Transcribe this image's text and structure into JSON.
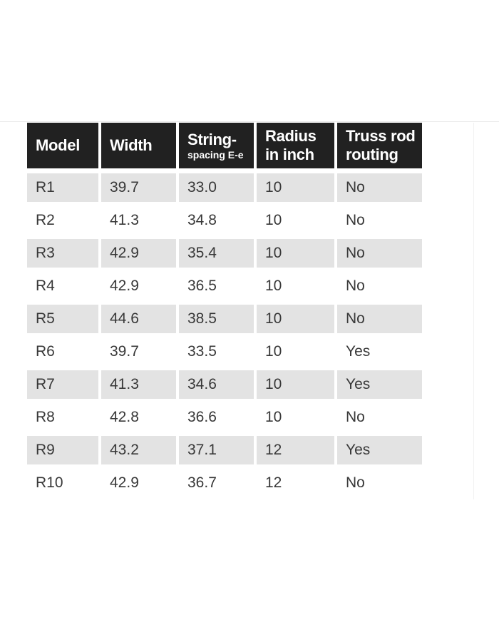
{
  "colors": {
    "page_bg": "#ffffff",
    "header_bg": "#212121",
    "header_text": "#ffffff",
    "stripe_bg": "#e3e3e3",
    "body_text": "#383838"
  },
  "table": {
    "header": {
      "model": "Model",
      "width": "Width",
      "string_line1": "String-",
      "string_line2": "spacing E-e",
      "radius_line1": "Radius",
      "radius_line2": "in inch",
      "truss_line1": "Truss rod",
      "truss_line2": "routing"
    },
    "rows": [
      [
        "R1",
        "39.7",
        "33.0",
        "10",
        "No"
      ],
      [
        "R2",
        "41.3",
        "34.8",
        "10",
        "No"
      ],
      [
        "R3",
        "42.9",
        "35.4",
        "10",
        "No"
      ],
      [
        "R4",
        "42.9",
        "36.5",
        "10",
        "No"
      ],
      [
        "R5",
        "44.6",
        "38.5",
        "10",
        "No"
      ],
      [
        "R6",
        "39.7",
        "33.5",
        "10",
        "Yes"
      ],
      [
        "R7",
        "41.3",
        "34.6",
        "10",
        "Yes"
      ],
      [
        "R8",
        "42.8",
        "36.6",
        "10",
        "No"
      ],
      [
        "R9",
        "43.2",
        "37.1",
        "12",
        "Yes"
      ],
      [
        "R10",
        "42.9",
        "36.7",
        "12",
        "No"
      ]
    ]
  }
}
